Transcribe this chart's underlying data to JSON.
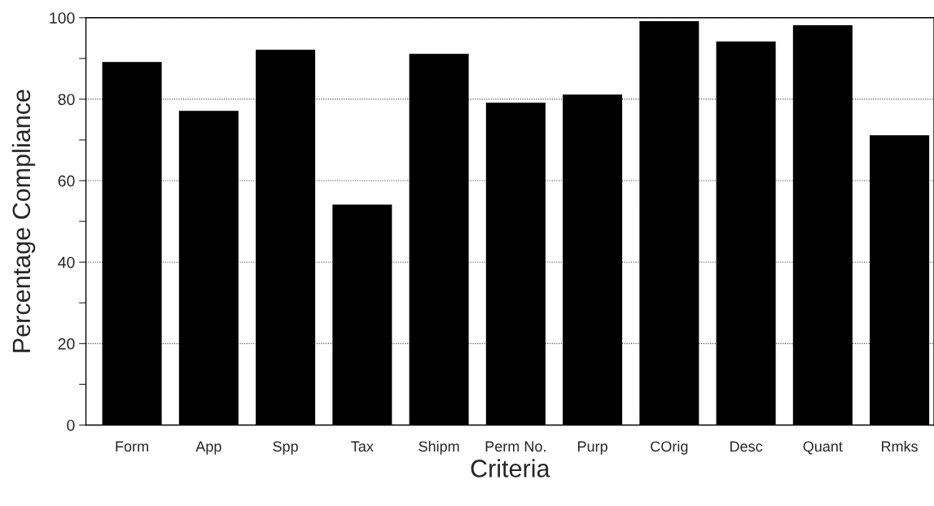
{
  "chart_data": {
    "type": "bar",
    "xlabel": "Criteria",
    "ylabel": "Percentage Compliance",
    "categories": [
      "Form",
      "App",
      "Spp",
      "Tax",
      "Shipm",
      "Perm No.",
      "Purp",
      "COrig",
      "Desc",
      "Quant",
      "Rmks"
    ],
    "values": [
      89,
      77,
      92,
      54,
      91,
      79,
      81,
      99,
      94,
      98,
      71
    ],
    "color": "#000000",
    "ylim": [
      0,
      100
    ],
    "yticks": [
      0,
      {
        "value": 10,
        "label": null
      },
      20,
      {
        "value": 30,
        "label": null
      },
      40,
      {
        "value": 50,
        "label": null
      },
      60,
      {
        "value": 70,
        "label": null
      },
      80,
      {
        "value": 90,
        "label": null
      },
      100
    ],
    "grid": "y"
  }
}
